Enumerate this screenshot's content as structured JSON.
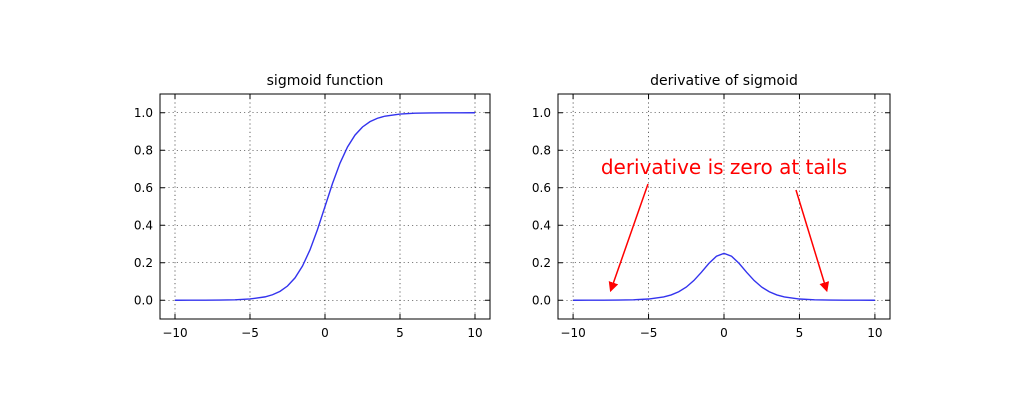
{
  "chart_data": [
    {
      "type": "line",
      "title": "sigmoid function",
      "xlabel": "",
      "ylabel": "",
      "xlim": [
        -11,
        11
      ],
      "ylim": [
        -0.1,
        1.1
      ],
      "xticks": [
        -10,
        -5,
        0,
        5,
        10
      ],
      "xtick_labels": [
        "−10",
        "−5",
        "0",
        "5",
        "10"
      ],
      "yticks": [
        0.0,
        0.2,
        0.4,
        0.6,
        0.8,
        1.0
      ],
      "ytick_labels": [
        "0.0",
        "0.2",
        "0.4",
        "0.6",
        "0.8",
        "1.0"
      ],
      "grid": true,
      "series": [
        {
          "color": "#3333ee",
          "x": [
            -10,
            -9,
            -8,
            -7,
            -6,
            -5,
            -4,
            -3.5,
            -3,
            -2.5,
            -2,
            -1.5,
            -1,
            -0.5,
            0,
            0.5,
            1,
            1.5,
            2,
            2.5,
            3,
            3.5,
            4,
            5,
            6,
            7,
            8,
            9,
            10
          ],
          "y": [
            0.0,
            0.0001,
            0.0003,
            0.0009,
            0.0025,
            0.0067,
            0.018,
            0.0293,
            0.0474,
            0.0759,
            0.1192,
            0.1824,
            0.2689,
            0.3775,
            0.5,
            0.6225,
            0.7311,
            0.8176,
            0.8808,
            0.9241,
            0.9526,
            0.9707,
            0.982,
            0.9933,
            0.9975,
            0.9991,
            0.9997,
            0.9999,
            1.0
          ]
        }
      ]
    },
    {
      "type": "line",
      "title": "derivative of sigmoid",
      "xlabel": "",
      "ylabel": "",
      "xlim": [
        -11,
        11
      ],
      "ylim": [
        -0.1,
        1.1
      ],
      "xticks": [
        -10,
        -5,
        0,
        5,
        10
      ],
      "xtick_labels": [
        "−10",
        "−5",
        "0",
        "5",
        "10"
      ],
      "yticks": [
        0.0,
        0.2,
        0.4,
        0.6,
        0.8,
        1.0
      ],
      "ytick_labels": [
        "0.0",
        "0.2",
        "0.4",
        "0.6",
        "0.8",
        "1.0"
      ],
      "grid": true,
      "annotation": {
        "text": "derivative is zero at tails",
        "color": "#ff0000",
        "arrow_targets": [
          [
            -7.5,
            0.0
          ],
          [
            6.8,
            0.0
          ]
        ]
      },
      "series": [
        {
          "color": "#3333ee",
          "x": [
            -10,
            -9,
            -8,
            -7,
            -6,
            -5,
            -4,
            -3.5,
            -3,
            -2.5,
            -2,
            -1.5,
            -1,
            -0.5,
            0,
            0.5,
            1,
            1.5,
            2,
            2.5,
            3,
            3.5,
            4,
            5,
            6,
            7,
            8,
            9,
            10
          ],
          "y": [
            0.0,
            0.0001,
            0.0003,
            0.0009,
            0.0025,
            0.0066,
            0.0177,
            0.0285,
            0.0452,
            0.0701,
            0.105,
            0.1491,
            0.1966,
            0.235,
            0.25,
            0.235,
            0.1966,
            0.1491,
            0.105,
            0.0701,
            0.0452,
            0.0285,
            0.0177,
            0.0066,
            0.0025,
            0.0009,
            0.0003,
            0.0001,
            0.0
          ]
        }
      ]
    }
  ]
}
